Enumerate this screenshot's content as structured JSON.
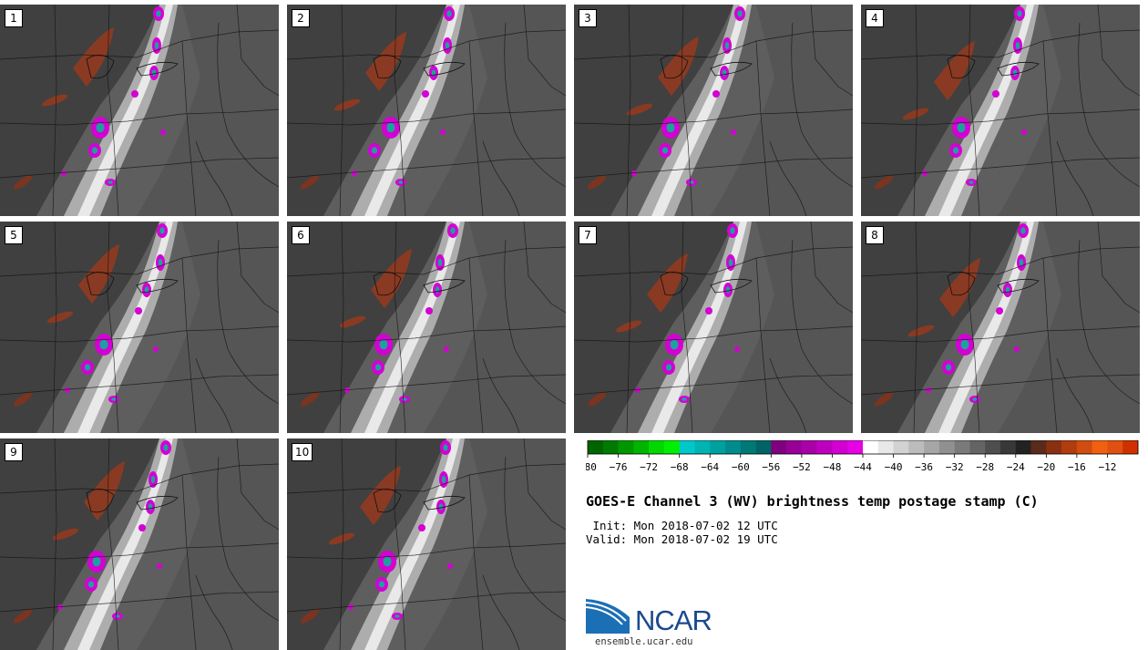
{
  "panels": [
    {
      "label": "1"
    },
    {
      "label": "2"
    },
    {
      "label": "3"
    },
    {
      "label": "4"
    },
    {
      "label": "5"
    },
    {
      "label": "6"
    },
    {
      "label": "7"
    },
    {
      "label": "8"
    },
    {
      "label": "9"
    },
    {
      "label": "10"
    }
  ],
  "colorbar": {
    "ticks": [
      "−80",
      "−76",
      "−72",
      "−68",
      "−64",
      "−60",
      "−56",
      "−52",
      "−48",
      "−44",
      "−40",
      "−36",
      "−32",
      "−28",
      "−24",
      "−20",
      "−16",
      "−12"
    ],
    "colors": [
      "#006400",
      "#007a00",
      "#009600",
      "#00b400",
      "#00d800",
      "#00f000",
      "#00c8c8",
      "#00b4b4",
      "#00a0a0",
      "#008c8c",
      "#007878",
      "#006464",
      "#800080",
      "#960096",
      "#aa00aa",
      "#be00be",
      "#d200d2",
      "#e600e6",
      "#ffffff",
      "#e8e8e8",
      "#d2d2d2",
      "#bcbcbc",
      "#a6a6a6",
      "#909090",
      "#7a7a7a",
      "#646464",
      "#4e4e4e",
      "#383838",
      "#222222",
      "#5a2a1a",
      "#8a3010",
      "#b03c10",
      "#d04c10",
      "#f06010",
      "#e05010",
      "#d03000"
    ]
  },
  "title": "GOES-E Channel 3 (WV) brightness temp postage stamp (C)",
  "init": " Init: Mon 2018-07-02 12 UTC",
  "valid": "Valid: Mon 2018-07-02 19 UTC",
  "logo": {
    "text": "NCAR",
    "url": "ensemble.ucar.edu",
    "icon": "ncar-logo-icon"
  }
}
